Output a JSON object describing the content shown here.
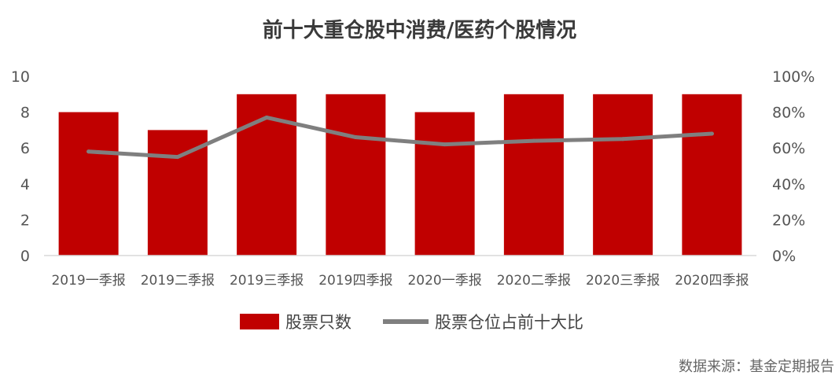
{
  "title": "前十大重仓股中消费/医药个股情况",
  "source": "数据来源：基金定期报告",
  "colors": {
    "bar": "#c00000",
    "line": "#7f7f7f",
    "axis_text": "#555555",
    "baseline": "#d9d9d9"
  },
  "chart_data": {
    "type": "bar",
    "title": "前十大重仓股中消费/医药个股情况",
    "categories": [
      "2019一季报",
      "2019二季报",
      "2019三季报",
      "2019四季报",
      "2020一季报",
      "2020二季报",
      "2020三季报",
      "2020四季报"
    ],
    "series": [
      {
        "name": "股票只数",
        "type": "bar",
        "axis": "left",
        "values": [
          8,
          7,
          9,
          9,
          8,
          9,
          9,
          9
        ]
      },
      {
        "name": "股票仓位占前十大比",
        "type": "line",
        "axis": "right",
        "values": [
          58,
          55,
          77,
          66,
          62,
          64,
          65,
          68
        ]
      }
    ],
    "y_left": {
      "min": 0,
      "max": 10,
      "ticks": [
        "0",
        "2",
        "4",
        "6",
        "8",
        "10"
      ]
    },
    "y_right": {
      "min": 0,
      "max": 100,
      "ticks": [
        "0%",
        "20%",
        "40%",
        "60%",
        "80%",
        "100%"
      ]
    },
    "grid": false,
    "legend_position": "bottom"
  }
}
